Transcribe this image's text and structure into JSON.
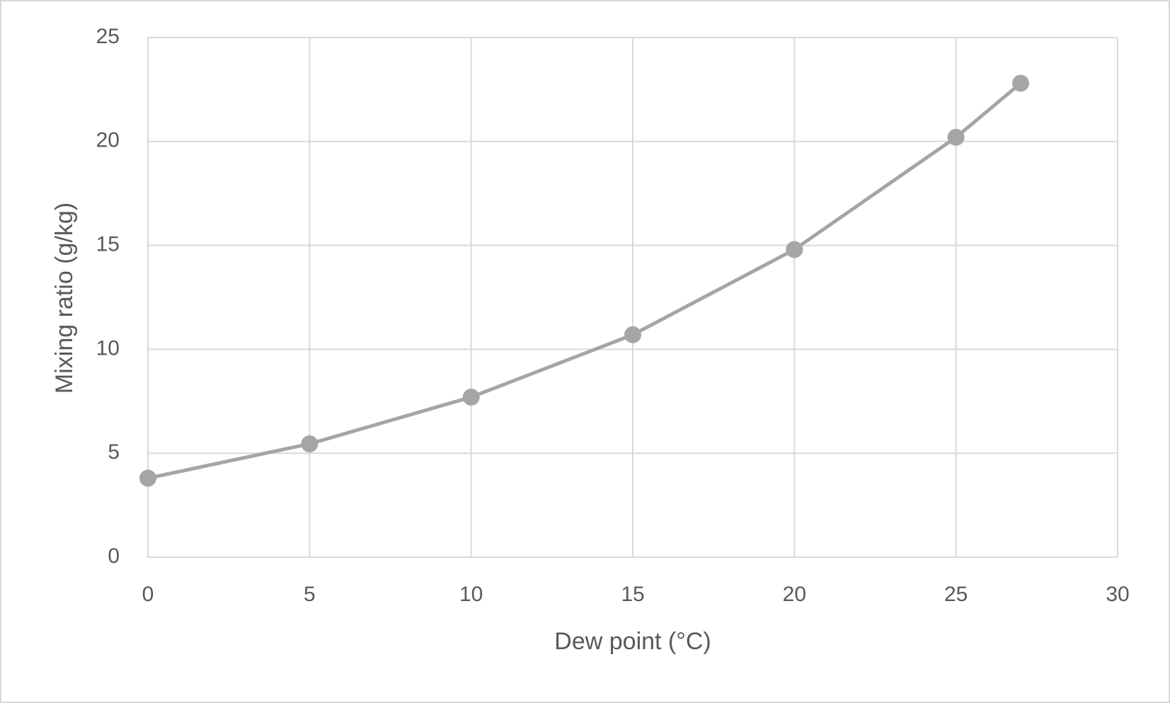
{
  "chart_data": {
    "type": "line",
    "x_label": "Dew point (°C)",
    "y_label": "Mixing ratio (g/kg)",
    "x": [
      0,
      5,
      10,
      15,
      20,
      25,
      27
    ],
    "values": [
      3.8,
      5.45,
      7.7,
      10.7,
      14.8,
      20.2,
      22.8
    ],
    "color": "#a5a5a5",
    "markers": true,
    "xlim": [
      0,
      30
    ],
    "xticks": [
      0,
      5,
      10,
      15,
      20,
      25,
      30
    ],
    "ylim": [
      0,
      25
    ],
    "yticks": [
      0,
      5,
      10,
      15,
      20,
      25
    ],
    "grid": true
  }
}
